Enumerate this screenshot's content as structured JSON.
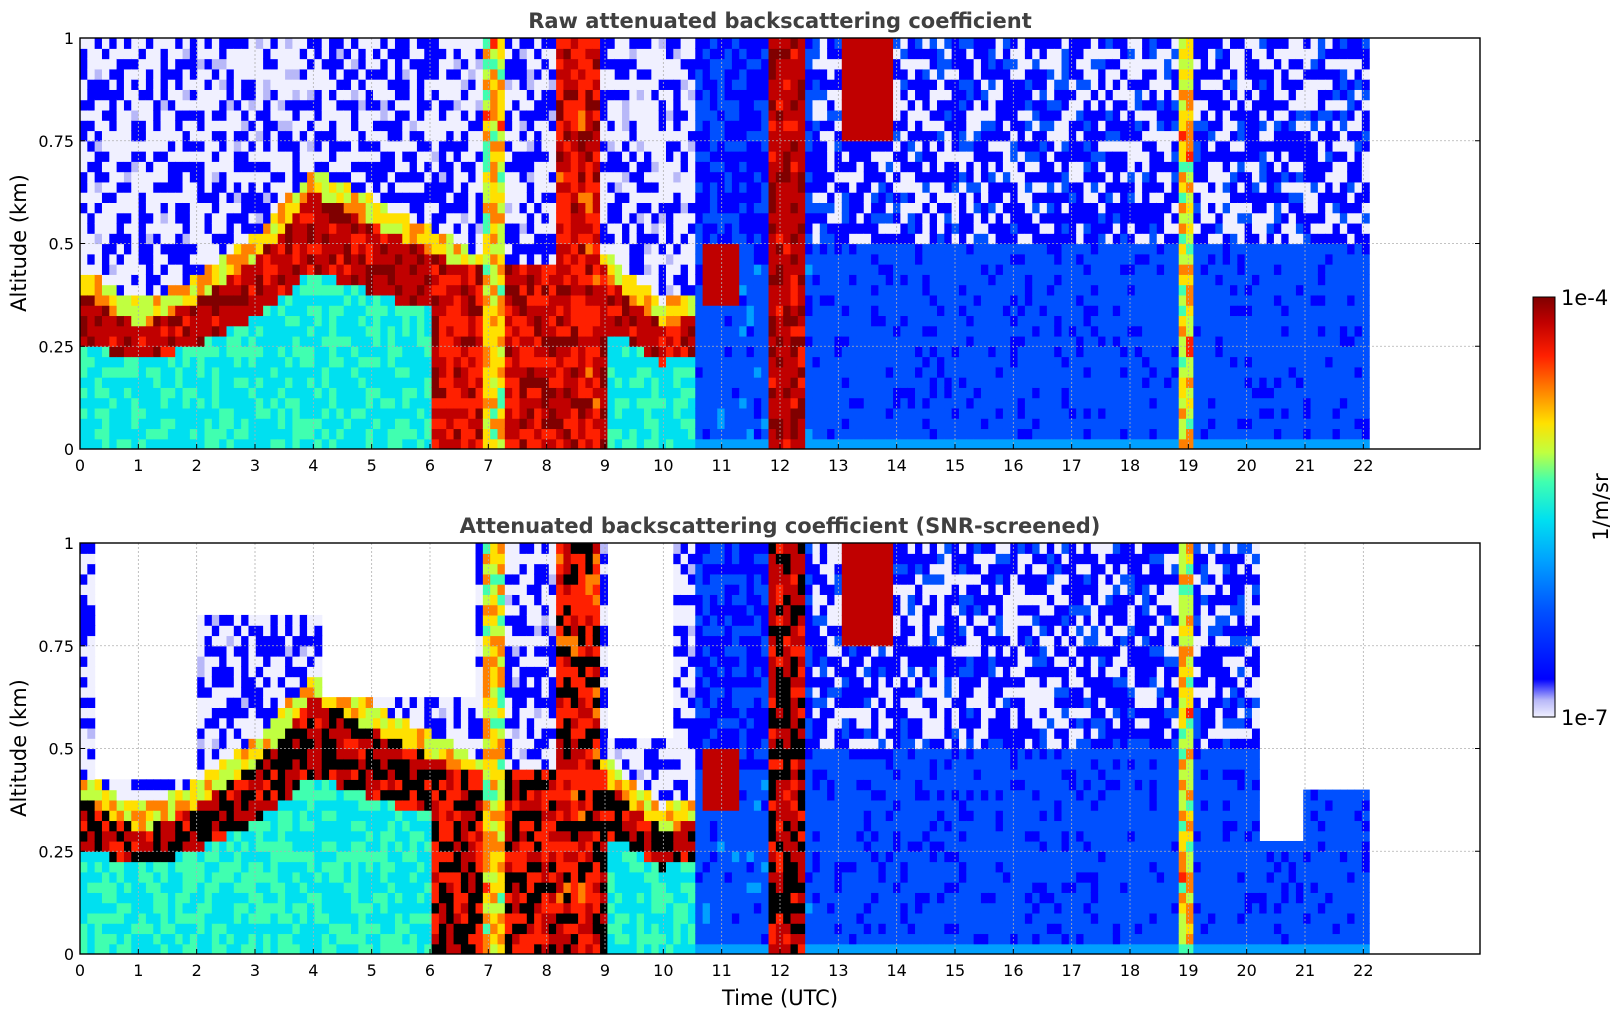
{
  "chart_data": [
    {
      "type": "heatmap",
      "title": "Raw attenuated backscattering coefficient",
      "xlabel": "",
      "ylabel": "Altitude (km)",
      "xlim": [
        0,
        24
      ],
      "ylim": [
        0,
        1
      ],
      "x_ticks": [
        "0",
        "1",
        "2",
        "3",
        "4",
        "5",
        "6",
        "7",
        "8",
        "9",
        "10",
        "11",
        "12",
        "13",
        "14",
        "15",
        "16",
        "17",
        "18",
        "19",
        "20",
        "21",
        "22"
      ],
      "y_ticks": [
        "0",
        "0.25",
        "0.5",
        "0.75",
        "1"
      ],
      "grid": true,
      "data_extent_hours": 22.1,
      "layer_top_km_by_hour": [
        0.38,
        0.3,
        0.36,
        0.46,
        0.62,
        0.55,
        0.48,
        0.4,
        0.35,
        0.42,
        0.3,
        0.35,
        0.42
      ],
      "screened_regions": []
    },
    {
      "type": "heatmap",
      "title": "Attenuated backscattering coefficient (SNR-screened)",
      "xlabel": "Time (UTC)",
      "ylabel": "Altitude (km)",
      "xlim": [
        0,
        24
      ],
      "ylim": [
        0,
        1
      ],
      "x_ticks": [
        "0",
        "1",
        "2",
        "3",
        "4",
        "5",
        "6",
        "7",
        "8",
        "9",
        "10",
        "11",
        "12",
        "13",
        "14",
        "15",
        "16",
        "17",
        "18",
        "19",
        "20",
        "21",
        "22"
      ],
      "y_ticks": [
        "0",
        "0.25",
        "0.5",
        "0.75",
        "1"
      ],
      "grid": true,
      "data_extent_hours": 22.1,
      "layer_top_km_by_hour": [
        0.38,
        0.3,
        0.36,
        0.46,
        0.62,
        0.55,
        0.48,
        0.4,
        0.35,
        0.42,
        0.3,
        0.35,
        0.42
      ],
      "screened_regions": [
        {
          "t0": 0.3,
          "t1": 2.0,
          "alt_above": 0.42
        },
        {
          "t0": 2.0,
          "t1": 4.2,
          "alt_above": 0.82
        },
        {
          "t0": 4.2,
          "t1": 6.8,
          "alt_above": 0.62
        },
        {
          "t0": 9.0,
          "t1": 10.2,
          "alt_above": 0.52
        },
        {
          "t0": 20.2,
          "t1": 21.0,
          "alt_above": 0.28
        },
        {
          "t0": 21.0,
          "t1": 22.1,
          "alt_above": 0.4
        }
      ]
    }
  ],
  "colorbar": {
    "label": "1/m/sr",
    "max_label": "1e-4",
    "min_label": "1e-7",
    "scale": "log",
    "colormap": "jet",
    "colors": [
      "#f0f0ff",
      "#b8b8f8",
      "#0000ff",
      "#0050ff",
      "#00a0ff",
      "#00e0f0",
      "#40ffb0",
      "#c0ff40",
      "#ffe000",
      "#ff8000",
      "#ff2000",
      "#c00000",
      "#800000"
    ]
  }
}
